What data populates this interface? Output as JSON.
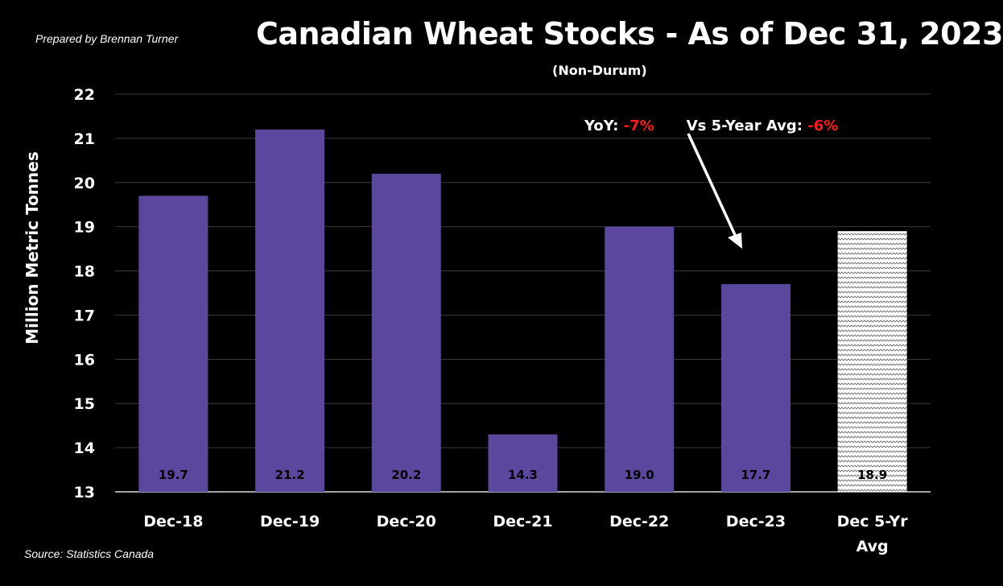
{
  "header": {
    "credit": "Prepared by Brennan Turner",
    "title": "Canadian Wheat Stocks - As of Dec 31, 2023",
    "subtitle": "(Non-Durum)"
  },
  "footer": {
    "source": "Source: Statistics Canada"
  },
  "annotation": {
    "yoy_label": "YoY: ",
    "yoy_value": "-7%",
    "avg_label": "Vs 5-Year Avg: ",
    "avg_value": "-6%"
  },
  "colors": {
    "bar": "#5b479d",
    "average_bar_pattern": "white-gray zigzag",
    "negative": "#ff1a1a",
    "background": "#000000",
    "grid": "#3a3a3a"
  },
  "chart_data": {
    "type": "bar",
    "title": "Canadian Wheat Stocks - As of Dec 31, 2023",
    "subtitle": "(Non-Durum)",
    "ylabel": "Million Metric Tonnes",
    "xlabel": "",
    "ylim": [
      13,
      22
    ],
    "yticks": [
      13,
      14,
      15,
      16,
      17,
      18,
      19,
      20,
      21,
      22
    ],
    "grid": true,
    "categories": [
      "Dec-18",
      "Dec-19",
      "Dec-20",
      "Dec-21",
      "Dec-22",
      "Dec-23",
      "Dec 5-Yr Avg"
    ],
    "category_lines": [
      [
        "Dec-18"
      ],
      [
        "Dec-19"
      ],
      [
        "Dec-20"
      ],
      [
        "Dec-21"
      ],
      [
        "Dec-22"
      ],
      [
        "Dec-23"
      ],
      [
        "Dec 5-Yr",
        "Avg"
      ]
    ],
    "values": [
      19.7,
      21.2,
      20.2,
      14.3,
      19.0,
      17.7,
      18.9
    ],
    "data_labels": [
      "19.7",
      "21.2",
      "20.2",
      "14.3",
      "19.0",
      "17.7",
      "18.9"
    ],
    "patterned": [
      false,
      false,
      false,
      false,
      false,
      false,
      true
    ]
  }
}
